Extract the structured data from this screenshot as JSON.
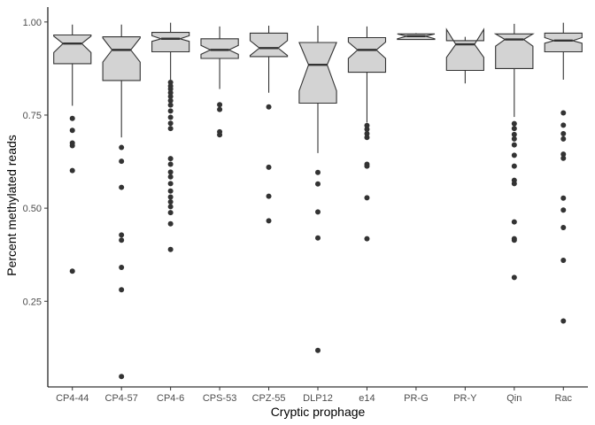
{
  "chart_data": {
    "type": "boxplot",
    "notched": true,
    "xlabel": "Cryptic prophage",
    "ylabel": "Percent methylated reads",
    "ylim": [
      0.02,
      1.04
    ],
    "yticks": [
      0.25,
      0.5,
      0.75,
      1.0
    ],
    "ytick_labels": [
      "0.25",
      "0.50",
      "0.75",
      "1.00"
    ],
    "grid": false,
    "colors": {
      "box_fill": "#d3d3d3",
      "line": "#333333",
      "axis": "#000000",
      "background": "#ffffff"
    },
    "categories": [
      "CP4-44",
      "CP4-57",
      "CP4-6",
      "CPS-53",
      "CPZ-55",
      "DLP12",
      "e14",
      "PR-G",
      "PR-Y",
      "Qin",
      "Rac"
    ],
    "boxes": [
      {
        "category": "CP4-44",
        "whisker_low": 0.775,
        "q1": 0.888,
        "median": 0.942,
        "q3": 0.965,
        "whisker_high": 0.993,
        "notch_low": 0.918,
        "notch_high": 0.962,
        "outliers": [
          0.741,
          0.709,
          0.675,
          0.668,
          0.601,
          0.331
        ]
      },
      {
        "category": "CP4-57",
        "whisker_low": 0.69,
        "q1": 0.843,
        "median": 0.925,
        "q3": 0.96,
        "whisker_high": 0.993,
        "notch_low": 0.892,
        "notch_high": 0.957,
        "outliers": [
          0.663,
          0.626,
          0.556,
          0.428,
          0.414,
          0.341,
          0.281,
          0.048
        ]
      },
      {
        "category": "CP4-6",
        "whisker_low": 0.845,
        "q1": 0.92,
        "median": 0.955,
        "q3": 0.972,
        "whisker_high": 0.998,
        "notch_low": 0.948,
        "notch_high": 0.963,
        "outliers": [
          0.838,
          0.828,
          0.82,
          0.81,
          0.8,
          0.789,
          0.777,
          0.761,
          0.744,
          0.728,
          0.714,
          0.633,
          0.618,
          0.597,
          0.584,
          0.566,
          0.546,
          0.53,
          0.517,
          0.504,
          0.488,
          0.458,
          0.389
        ]
      },
      {
        "category": "CPS-53",
        "whisker_low": 0.82,
        "q1": 0.902,
        "median": 0.925,
        "q3": 0.955,
        "whisker_high": 0.988,
        "notch_low": 0.913,
        "notch_high": 0.937,
        "outliers": [
          0.778,
          0.765,
          0.705,
          0.697
        ]
      },
      {
        "category": "CPZ-55",
        "whisker_low": 0.81,
        "q1": 0.907,
        "median": 0.93,
        "q3": 0.97,
        "whisker_high": 0.99,
        "notch_low": 0.91,
        "notch_high": 0.95,
        "outliers": [
          0.772,
          0.61,
          0.532,
          0.466
        ]
      },
      {
        "category": "DLP12",
        "whisker_low": 0.648,
        "q1": 0.782,
        "median": 0.885,
        "q3": 0.945,
        "whisker_high": 0.99,
        "notch_low": 0.815,
        "notch_high": 0.945,
        "outliers": [
          0.596,
          0.565,
          0.49,
          0.42,
          0.118
        ]
      },
      {
        "category": "e14",
        "whisker_low": 0.73,
        "q1": 0.865,
        "median": 0.925,
        "q3": 0.958,
        "whisker_high": 0.988,
        "notch_low": 0.902,
        "notch_high": 0.946,
        "outliers": [
          0.722,
          0.712,
          0.7,
          0.69,
          0.618,
          0.613,
          0.528,
          0.418
        ]
      },
      {
        "category": "PR-G",
        "whisker_low": 0.953,
        "q1": 0.953,
        "median": 0.962,
        "q3": 0.968,
        "whisker_high": 0.97,
        "notch_low": 0.955,
        "notch_high": 0.968,
        "outliers": []
      },
      {
        "category": "PR-Y",
        "whisker_low": 0.835,
        "q1": 0.87,
        "median": 0.94,
        "q3": 0.95,
        "whisker_high": 0.96,
        "notch_low": 0.905,
        "notch_high": 0.98,
        "outliers": []
      },
      {
        "category": "Qin",
        "whisker_low": 0.745,
        "q1": 0.875,
        "median": 0.953,
        "q3": 0.968,
        "whisker_high": 0.995,
        "notch_low": 0.935,
        "notch_high": 0.968,
        "outliers": [
          0.727,
          0.714,
          0.698,
          0.686,
          0.67,
          0.642,
          0.613,
          0.575,
          0.566,
          0.463,
          0.418,
          0.414,
          0.314
        ]
      },
      {
        "category": "Rac",
        "whisker_low": 0.845,
        "q1": 0.92,
        "median": 0.95,
        "q3": 0.97,
        "whisker_high": 0.998,
        "notch_low": 0.943,
        "notch_high": 0.958,
        "outliers": [
          0.756,
          0.723,
          0.7,
          0.686,
          0.645,
          0.634,
          0.527,
          0.495,
          0.448,
          0.36,
          0.197
        ]
      }
    ]
  }
}
